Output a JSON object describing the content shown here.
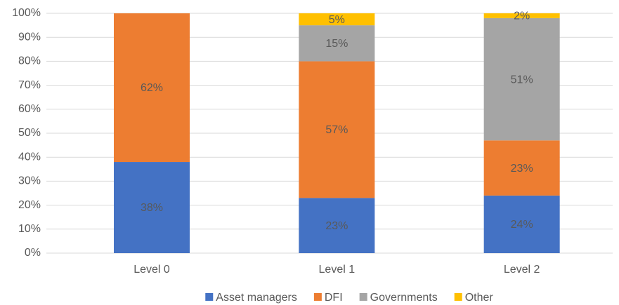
{
  "chart_data": {
    "type": "stacked_bar",
    "categories": [
      "Level 0",
      "Level 1",
      "Level 2"
    ],
    "series": [
      {
        "name": "Asset managers",
        "color": "#4472c4",
        "values": [
          38,
          23,
          24
        ],
        "value_labels": [
          "38%",
          "23%",
          "24%"
        ]
      },
      {
        "name": "DFI",
        "color": "#ed7d31",
        "values": [
          62,
          57,
          23
        ],
        "value_labels": [
          "62%",
          "57%",
          "23%"
        ]
      },
      {
        "name": "Governments",
        "color": "#a5a5a5",
        "values": [
          null,
          15,
          51
        ],
        "value_labels": [
          null,
          "15%",
          "51%"
        ]
      },
      {
        "name": "Other",
        "color": "#ffc000",
        "values": [
          null,
          5,
          2
        ],
        "value_labels": [
          null,
          "5%",
          "2%"
        ]
      }
    ],
    "ylim": [
      0,
      100
    ],
    "yticks": [
      {
        "value": 0,
        "label": "0%"
      },
      {
        "value": 10,
        "label": "10%"
      },
      {
        "value": 20,
        "label": "20%"
      },
      {
        "value": 30,
        "label": "30%"
      },
      {
        "value": 40,
        "label": "40%"
      },
      {
        "value": 50,
        "label": "50%"
      },
      {
        "value": 60,
        "label": "60%"
      },
      {
        "value": 70,
        "label": "70%"
      },
      {
        "value": 80,
        "label": "80%"
      },
      {
        "value": 90,
        "label": "90%"
      },
      {
        "value": 100,
        "label": "100%"
      }
    ],
    "grid": true,
    "legend": "bottom"
  }
}
